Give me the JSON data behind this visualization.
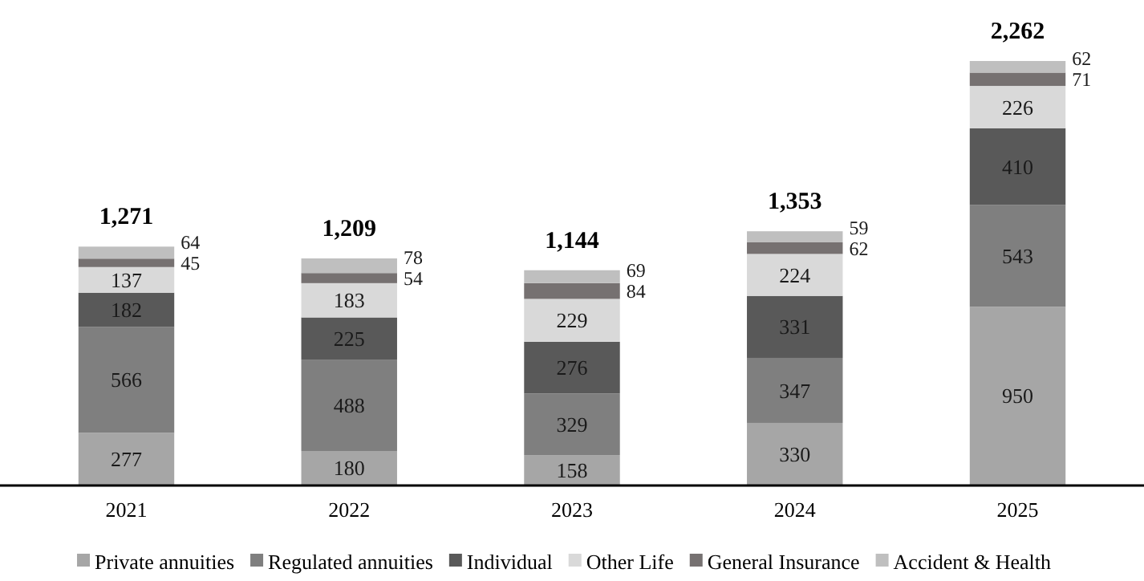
{
  "chart_data": {
    "type": "bar",
    "stacked": true,
    "data_labels": true,
    "legend": "bottom",
    "categories": [
      "2021",
      "2022",
      "2023",
      "2024",
      "2025"
    ],
    "series": [
      {
        "name": "Private annuities",
        "color": "#a6a6a6",
        "values": [
          277,
          180,
          158,
          330,
          950
        ]
      },
      {
        "name": "Regulated annuities",
        "color": "#7f7f7f",
        "values": [
          566,
          488,
          329,
          347,
          543
        ]
      },
      {
        "name": "Individual",
        "color": "#595959",
        "values": [
          182,
          225,
          276,
          331,
          410
        ]
      },
      {
        "name": "Other Life",
        "color": "#d9d9d9",
        "values": [
          137,
          183,
          229,
          224,
          226
        ]
      },
      {
        "name": "General Insurance",
        "color": "#767171",
        "values": [
          45,
          54,
          84,
          62,
          71
        ]
      },
      {
        "name": "Accident & Health",
        "color": "#bfbfbf",
        "values": [
          64,
          78,
          69,
          59,
          62
        ]
      }
    ],
    "totals": [
      "1,271",
      "1,209",
      "1,144",
      "1,353",
      "2,262"
    ]
  }
}
